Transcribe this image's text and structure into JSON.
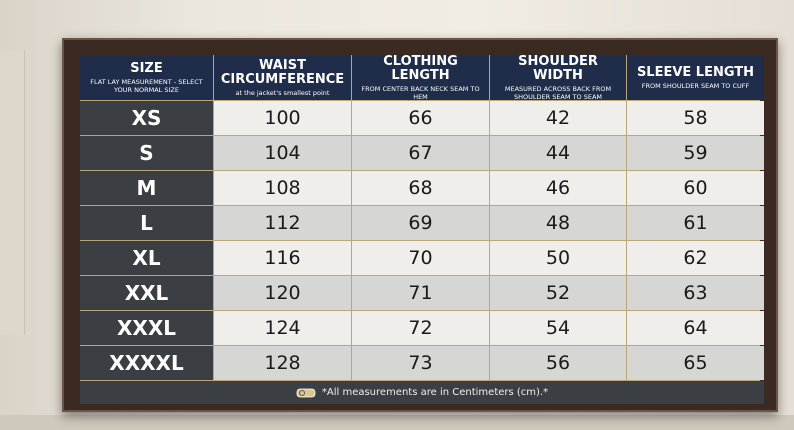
{
  "table": {
    "header": [
      {
        "title": "SIZE",
        "subtitle": "FLAT LAY MEASUREMENT - SELECT YOUR NORMAL SIZE"
      },
      {
        "title": "WAIST CIRCUMFERENCE",
        "subtitle": "at the jacket's smallest point"
      },
      {
        "title": "CLOTHING LENGTH",
        "subtitle": "FROM CENTER BACK NECK SEAM TO HEM"
      },
      {
        "title": "SHOULDER WIDTH",
        "subtitle": "MEASURED ACROSS BACK FROM SHOULDER SEAM TO SEAM"
      },
      {
        "title": "SLEEVE LENGTH",
        "subtitle": "FROM SHOULDER SEAM TO CUFF"
      }
    ],
    "rows": [
      [
        "XS",
        100,
        66,
        42,
        58
      ],
      [
        "S",
        104,
        67,
        44,
        59
      ],
      [
        "M",
        108,
        68,
        46,
        60
      ],
      [
        "L",
        112,
        69,
        48,
        61
      ],
      [
        "XL",
        116,
        70,
        50,
        62
      ],
      [
        "XXL",
        120,
        71,
        52,
        63
      ],
      [
        "XXXL",
        124,
        72,
        54,
        64
      ],
      [
        "XXXXL",
        128,
        73,
        56,
        65
      ]
    ],
    "footer": "*All measurements are in Centimeters (cm).*"
  }
}
